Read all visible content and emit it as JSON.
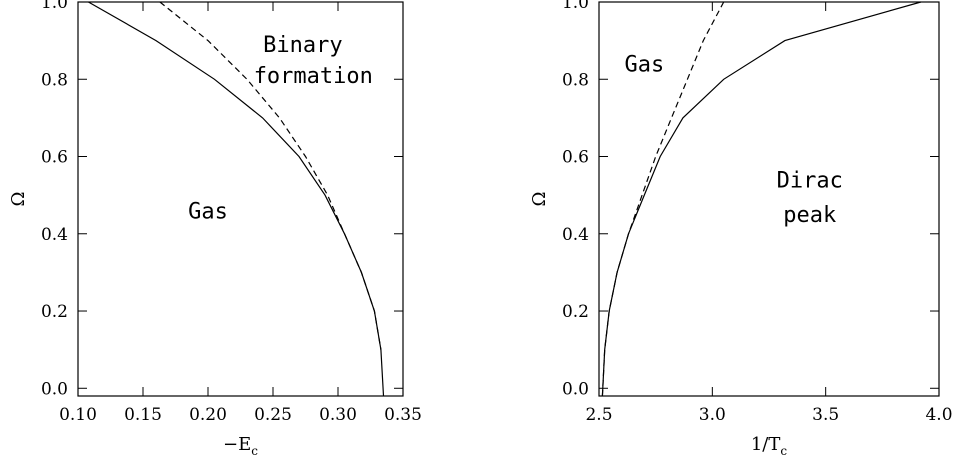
{
  "chart_data": [
    {
      "type": "line",
      "xlabel_main": "−E",
      "xlabel_sub": "c",
      "ylabel": "Ω",
      "xlim": [
        0.1,
        0.35
      ],
      "ylim": [
        -0.02,
        1.0
      ],
      "xticks": [
        0.1,
        0.15,
        0.2,
        0.25,
        0.3,
        0.35
      ],
      "xtick_labels": [
        "0.10",
        "0.15",
        "0.20",
        "0.25",
        "0.30",
        "0.35"
      ],
      "yticks": [
        0.0,
        0.2,
        0.4,
        0.6,
        0.8,
        1.0
      ],
      "ytick_labels": [
        "0.0",
        "0.2",
        "0.4",
        "0.6",
        "0.8",
        "1.0"
      ],
      "series": [
        {
          "style": "solid",
          "x": [
            0.108,
            0.16,
            0.205,
            0.242,
            0.27,
            0.29,
            0.305,
            0.318,
            0.328,
            0.333,
            0.335
          ],
          "y": [
            1.0,
            0.9,
            0.8,
            0.7,
            0.6,
            0.5,
            0.4,
            0.3,
            0.2,
            0.1,
            -0.02
          ]
        },
        {
          "style": "dashed",
          "x": [
            0.163,
            0.2,
            0.23,
            0.255,
            0.275,
            0.292,
            0.305,
            0.318,
            0.328,
            0.333
          ],
          "y": [
            1.0,
            0.9,
            0.8,
            0.7,
            0.6,
            0.5,
            0.4,
            0.3,
            0.2,
            0.1
          ]
        }
      ],
      "annotations": [
        {
          "text": "Binary",
          "x": 0.273,
          "y": 0.87
        },
        {
          "text": "formation",
          "x": 0.281,
          "y": 0.79
        },
        {
          "text": "Gas",
          "x": 0.2,
          "y": 0.44
        }
      ]
    },
    {
      "type": "line",
      "xlabel_main": "1/T",
      "xlabel_sub": "c",
      "ylabel": "Ω",
      "xlim": [
        2.5,
        4.0
      ],
      "ylim": [
        -0.02,
        1.0
      ],
      "xticks": [
        2.5,
        3.0,
        3.5,
        4.0
      ],
      "xtick_labels": [
        "2.5",
        "3.0",
        "3.5",
        "4.0"
      ],
      "yticks": [
        0.0,
        0.2,
        0.4,
        0.6,
        0.8,
        1.0
      ],
      "ytick_labels": [
        "0.0",
        "0.2",
        "0.4",
        "0.6",
        "0.8",
        "1.0"
      ],
      "series": [
        {
          "style": "solid",
          "x": [
            2.515,
            2.525,
            2.545,
            2.58,
            2.63,
            2.7,
            2.77,
            2.87,
            3.05,
            3.32,
            3.92
          ],
          "y": [
            -0.02,
            0.1,
            0.2,
            0.3,
            0.4,
            0.5,
            0.6,
            0.7,
            0.8,
            0.9,
            1.0
          ]
        },
        {
          "style": "dashed",
          "x": [
            2.515,
            2.525,
            2.545,
            2.58,
            2.63,
            2.69,
            2.75,
            2.82,
            2.89,
            2.96,
            3.05
          ],
          "y": [
            -0.02,
            0.1,
            0.2,
            0.3,
            0.4,
            0.5,
            0.6,
            0.7,
            0.8,
            0.9,
            1.0
          ]
        }
      ],
      "annotations": [
        {
          "text": "Gas",
          "x": 2.7,
          "y": 0.82
        },
        {
          "text": "Dirac",
          "x": 3.43,
          "y": 0.52
        },
        {
          "text": "peak",
          "x": 3.43,
          "y": 0.43
        }
      ]
    }
  ]
}
